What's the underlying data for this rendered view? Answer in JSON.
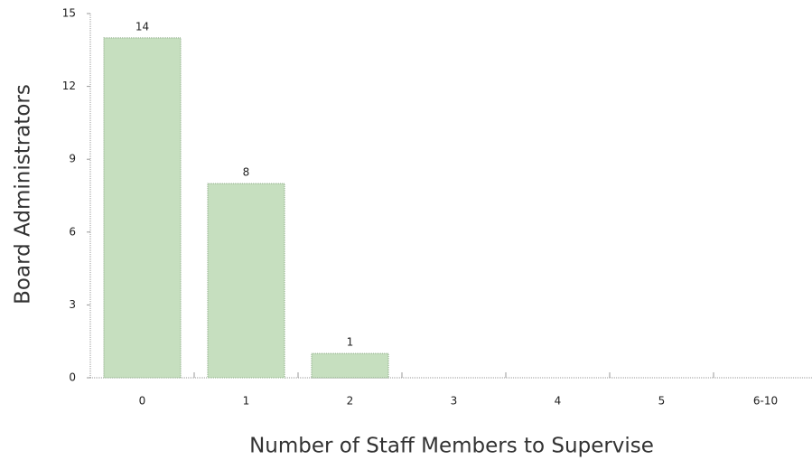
{
  "chart_data": {
    "type": "bar",
    "x_label": "Number of Staff Members to Supervise",
    "y_label": "Board Administrators",
    "categories": [
      "0",
      "1",
      "2",
      "3",
      "4",
      "5",
      "6-10"
    ],
    "values": [
      14,
      8,
      1,
      0,
      0,
      0,
      0
    ],
    "value_labels": [
      "14",
      "8",
      "1",
      null,
      null,
      null,
      null
    ],
    "color": "#c6dfbf",
    "ylim": [
      0,
      15
    ],
    "yticks": [
      0,
      3,
      6,
      9,
      12,
      15
    ],
    "grid": false
  }
}
